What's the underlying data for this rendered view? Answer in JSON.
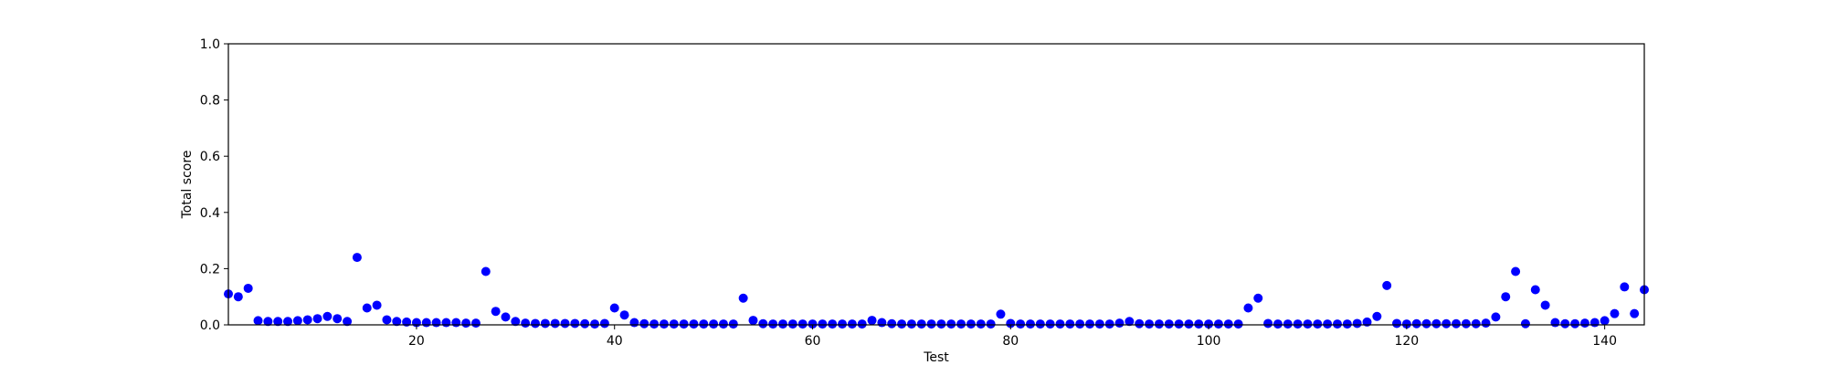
{
  "chart_data": {
    "type": "scatter",
    "xlabel": "Test",
    "ylabel": "Total score",
    "xlim": [
      1,
      144
    ],
    "ylim": [
      0,
      1.0
    ],
    "x_ticks": [
      20,
      40,
      60,
      80,
      100,
      120,
      140
    ],
    "y_ticks": [
      0.0,
      0.2,
      0.4,
      0.6,
      0.8,
      1.0
    ],
    "grid": false,
    "marker_color": "#0000ff",
    "x": [
      1,
      2,
      3,
      4,
      5,
      6,
      7,
      8,
      9,
      10,
      11,
      12,
      13,
      14,
      15,
      16,
      17,
      18,
      19,
      20,
      21,
      22,
      23,
      24,
      25,
      26,
      27,
      28,
      29,
      30,
      31,
      32,
      33,
      34,
      35,
      36,
      37,
      38,
      39,
      40,
      41,
      42,
      43,
      44,
      45,
      46,
      47,
      48,
      49,
      50,
      51,
      52,
      53,
      54,
      55,
      56,
      57,
      58,
      59,
      60,
      61,
      62,
      63,
      64,
      65,
      66,
      67,
      68,
      69,
      70,
      71,
      72,
      73,
      74,
      75,
      76,
      77,
      78,
      79,
      80,
      81,
      82,
      83,
      84,
      85,
      86,
      87,
      88,
      89,
      90,
      91,
      92,
      93,
      94,
      95,
      96,
      97,
      98,
      99,
      100,
      101,
      102,
      103,
      104,
      105,
      106,
      107,
      108,
      109,
      110,
      111,
      112,
      113,
      114,
      115,
      116,
      117,
      118,
      119,
      120,
      121,
      122,
      123,
      124,
      125,
      126,
      127,
      128,
      129,
      130,
      131,
      132,
      133,
      134,
      135,
      136,
      137,
      138,
      139,
      140,
      141,
      142,
      143,
      144
    ],
    "y": [
      0.11,
      0.1,
      0.13,
      0.015,
      0.012,
      0.012,
      0.012,
      0.015,
      0.018,
      0.022,
      0.03,
      0.022,
      0.012,
      0.24,
      0.06,
      0.07,
      0.018,
      0.012,
      0.01,
      0.008,
      0.008,
      0.008,
      0.008,
      0.008,
      0.006,
      0.006,
      0.19,
      0.048,
      0.028,
      0.012,
      0.006,
      0.005,
      0.005,
      0.005,
      0.005,
      0.005,
      0.004,
      0.003,
      0.005,
      0.06,
      0.035,
      0.008,
      0.004,
      0.003,
      0.003,
      0.003,
      0.003,
      0.003,
      0.003,
      0.003,
      0.003,
      0.003,
      0.095,
      0.016,
      0.004,
      0.003,
      0.003,
      0.003,
      0.003,
      0.003,
      0.003,
      0.003,
      0.003,
      0.003,
      0.003,
      0.016,
      0.008,
      0.004,
      0.003,
      0.003,
      0.003,
      0.003,
      0.003,
      0.003,
      0.003,
      0.003,
      0.003,
      0.003,
      0.038,
      0.005,
      0.003,
      0.003,
      0.003,
      0.003,
      0.003,
      0.003,
      0.003,
      0.003,
      0.003,
      0.003,
      0.006,
      0.012,
      0.004,
      0.003,
      0.003,
      0.003,
      0.003,
      0.003,
      0.003,
      0.003,
      0.003,
      0.003,
      0.003,
      0.06,
      0.095,
      0.005,
      0.003,
      0.003,
      0.003,
      0.003,
      0.003,
      0.003,
      0.003,
      0.003,
      0.005,
      0.01,
      0.03,
      0.14,
      0.005,
      0.003,
      0.004,
      0.004,
      0.004,
      0.004,
      0.004,
      0.004,
      0.004,
      0.006,
      0.028,
      0.1,
      0.19,
      0.004,
      0.125,
      0.07,
      0.008,
      0.004,
      0.004,
      0.006,
      0.008,
      0.015,
      0.04,
      0.135,
      0.04,
      0.125
    ]
  }
}
